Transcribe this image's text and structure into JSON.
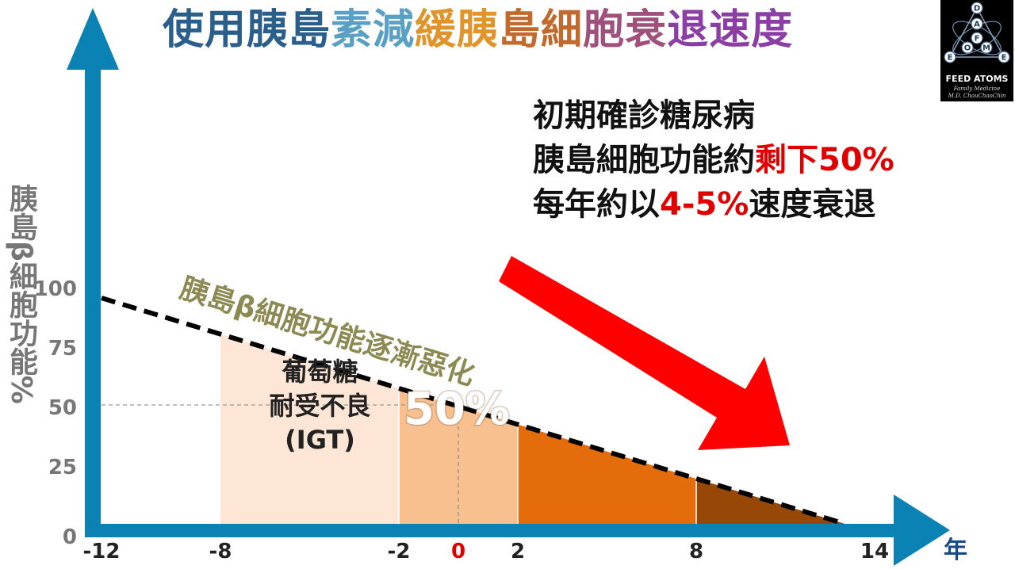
{
  "title": {
    "segments": [
      {
        "text": "使用胰島",
        "color": "#2a5f8c"
      },
      {
        "text": "素減",
        "color": "#5aa0c4"
      },
      {
        "text": "緩胰",
        "color": "#e0942c"
      },
      {
        "text": "島細",
        "color": "#c2692e"
      },
      {
        "text": "胞衰",
        "color": "#a0507c"
      },
      {
        "text": "退速度",
        "color": "#8b3fa4"
      }
    ]
  },
  "annotation": {
    "line1": "初期確診糖尿病",
    "line2_a": "胰島細胞功能約",
    "line2_b": "剩下50%",
    "line3_a": "每年約以",
    "line3_b": "4-5%",
    "line3_c": "速度衰退"
  },
  "logo": {
    "letters": [
      "D",
      "A",
      "F",
      "O",
      "M",
      "E",
      "E"
    ],
    "name": "FEED ATOMS",
    "line2": "Family Medicine",
    "line3": "M.D. ChouChaoChin"
  },
  "chart_data": {
    "type": "area",
    "x": [
      -12,
      13
    ],
    "y": [
      95,
      0
    ],
    "xlabel": "年",
    "ylabel": "胰島β細胞功能%",
    "xlim": [
      -12,
      15
    ],
    "ylim": [
      0,
      100
    ],
    "x_ticks": [
      {
        "value": -12,
        "label": "-12",
        "color": "#222222"
      },
      {
        "value": -8,
        "label": "-8",
        "color": "#222222"
      },
      {
        "value": -2,
        "label": "-2",
        "color": "#222222"
      },
      {
        "value": 0,
        "label": "0",
        "color": "#e00000"
      },
      {
        "value": 2,
        "label": "2",
        "color": "#222222"
      },
      {
        "value": 8,
        "label": "8",
        "color": "#222222"
      },
      {
        "value": 14,
        "label": "14",
        "color": "#222222"
      }
    ],
    "y_ticks": [
      0,
      25,
      50,
      75,
      100
    ],
    "regions": [
      {
        "x_start": -8,
        "x_end": -2,
        "color": "#fde6d6"
      },
      {
        "x_start": -2,
        "x_end": 2,
        "color": "#f8c08e"
      },
      {
        "x_start": 2,
        "x_end": 8,
        "color": "#e46c0a"
      },
      {
        "x_start": 8,
        "x_end": 13,
        "color": "#974806"
      }
    ],
    "reference": {
      "x": 0,
      "y": 50
    },
    "trend_label": "胰島β細胞功能逐漸惡化",
    "trend_color": "#8c8a52",
    "region_labels": [
      {
        "lines": [
          "葡萄糖",
          "耐受不良",
          "(IGT)"
        ],
        "x": -5
      },
      {
        "lines": [
          "50%"
        ],
        "x": 0
      }
    ],
    "axis_color": "#0b82b4",
    "arrow_color": "#ff0000"
  }
}
